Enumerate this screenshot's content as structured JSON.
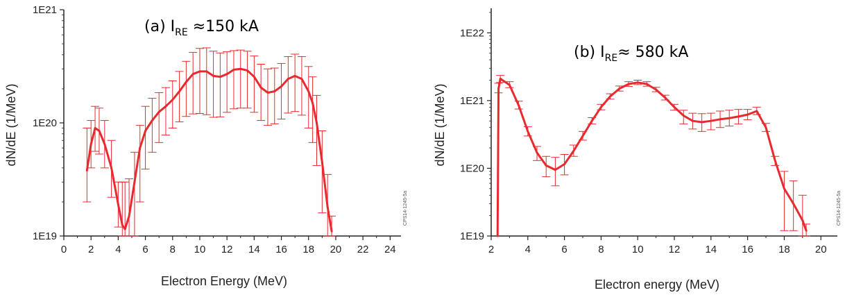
{
  "chart_data": [
    {
      "type": "line",
      "panel_label": {
        "prefix": "(a) I",
        "subscript": "RE",
        "suffix": " ≈150 kA"
      },
      "xlabel": "Electron Energy (MeV)",
      "ylabel": "dN/dE (1/MeV)",
      "xlim": [
        0,
        24.8
      ],
      "ylim": [
        1e+19,
        1e+21
      ],
      "yscale": "log",
      "x_ticks": [
        0,
        2,
        4,
        6,
        8,
        10,
        12,
        14,
        16,
        18,
        20,
        22,
        24
      ],
      "x_tick_labels": [
        "0",
        "2",
        "4",
        "6",
        "8",
        "10",
        "12",
        "14",
        "16",
        "18",
        "20",
        "22",
        "24"
      ],
      "y_ticks": [
        1e+19,
        1e+20,
        1e+21
      ],
      "y_tick_labels": [
        "1E19",
        "1E20",
        "1E21"
      ],
      "side_code": "CPS14-1245-5a",
      "color": "#e8292e",
      "series": [
        {
          "x": [
            1.7,
            2.0,
            2.3,
            2.6,
            3.0,
            3.5,
            4.0,
            4.3,
            4.5,
            4.8,
            5.2,
            5.6,
            6.0,
            6.5,
            7.0,
            7.5,
            8.0,
            8.5,
            9.0,
            9.5,
            10.0,
            10.5,
            11.0,
            11.5,
            12.0,
            12.5,
            13.0,
            13.5,
            14.0,
            14.5,
            15.0,
            15.5,
            16.0,
            16.5,
            17.0,
            17.5,
            18.0,
            18.3,
            18.6,
            19.0,
            19.4,
            19.7
          ],
          "y": [
            3.8e+19,
            6.5e+19,
            9e+19,
            8.5e+19,
            6.5e+19,
            4e+19,
            1.9e+19,
            1.25e+19,
            1.15e+19,
            1.5e+19,
            3e+19,
            6e+19,
            8.5e+19,
            1.05e+20,
            1.25e+20,
            1.4e+20,
            1.6e+20,
            1.9e+20,
            2.3e+20,
            2.7e+20,
            2.85e+20,
            2.85e+20,
            2.6e+20,
            2.55e+20,
            2.7e+20,
            2.95e+20,
            3e+20,
            2.9e+20,
            2.55e+20,
            2.05e+20,
            1.85e+20,
            1.9e+20,
            2.1e+20,
            2.45e+20,
            2.6e+20,
            2.45e+20,
            1.9e+20,
            1.5e+20,
            1e+20,
            4.5e+19,
            1.8e+19,
            1.1e+19
          ],
          "err_low": [
            2e+19,
            4e+19,
            5.6e+19,
            5.3e+19,
            4e+19,
            2.2e+19,
            1.2e+19,
            1e+19,
            1e+19,
            1e+19,
            1e+19,
            2e+19,
            3.9e+19,
            5.5e+19,
            6.7e+19,
            7.8e+19,
            9e+19,
            1.02e+20,
            1.14e+20,
            1.2e+20,
            1.21e+20,
            1.18e+20,
            1.12e+20,
            1.13e+20,
            1.24e+20,
            1.33e+20,
            1.35e+20,
            1.35e+20,
            1.24e+20,
            1.05e+20,
            9.5e+19,
            9.8e+19,
            1.08e+20,
            1.22e+20,
            1.26e+20,
            1.17e+20,
            9e+19,
            6.7e+19,
            4.2e+19,
            1.6e+19,
            1e+19,
            1e+19
          ],
          "err_high": [
            9e+19,
            1.05e+20,
            1.4e+20,
            1.35e+20,
            1.05e+20,
            7e+19,
            3e+19,
            3e+19,
            3e+19,
            3.2e+19,
            5.5e+19,
            9.5e+19,
            1.4e+20,
            1.65e+20,
            1.85e+20,
            2.05e+20,
            2.35e+20,
            2.85e+20,
            3.5e+20,
            4.2e+20,
            4.55e+20,
            4.6e+20,
            4.3e+20,
            4.15e+20,
            4.25e+20,
            4.35e+20,
            4.4e+20,
            4.3e+20,
            3.9e+20,
            3.3e+20,
            3e+20,
            3.05e+20,
            3.35e+20,
            3.85e+20,
            4.05e+20,
            3.85e+20,
            3.15e+20,
            2.55e+20,
            1.75e+20,
            8.5e+19,
            3.5e+19,
            1.5e+19
          ]
        }
      ]
    },
    {
      "type": "line",
      "panel_label": {
        "prefix": "(b) I",
        "subscript": "RE",
        "suffix": "≈ 580 kA"
      },
      "xlabel": "Electron energy (MeV)",
      "ylabel": "dN/dE (1/MeV)",
      "xlim": [
        2,
        20.9
      ],
      "ylim": [
        1e+19,
        2.3e+22
      ],
      "yscale": "log",
      "x_ticks": [
        2,
        4,
        6,
        8,
        10,
        12,
        14,
        16,
        18,
        20
      ],
      "x_tick_labels": [
        "2",
        "4",
        "6",
        "8",
        "10",
        "12",
        "14",
        "16",
        "18",
        "20"
      ],
      "y_ticks": [
        1e+19,
        1e+20,
        1e+21,
        1e+22
      ],
      "y_tick_labels": [
        "1E19",
        "1E20",
        "1E21",
        "1E22"
      ],
      "side_code": "CPS14-1245-5a",
      "color": "#e8292e",
      "series": [
        {
          "x": [
            2.35,
            2.4,
            2.5,
            3.0,
            3.5,
            4.0,
            4.5,
            5.0,
            5.5,
            6.0,
            6.5,
            7.0,
            7.5,
            8.0,
            8.5,
            9.0,
            9.5,
            10.0,
            10.5,
            11.0,
            11.5,
            12.0,
            12.5,
            13.0,
            13.5,
            14.0,
            14.5,
            15.0,
            15.5,
            16.0,
            16.5,
            17.0,
            17.5,
            18.0,
            18.5,
            19.0,
            19.2
          ],
          "y": [
            1e+19,
            1.5e+21,
            2.1e+21,
            1.7e+21,
            8.5e+20,
            3.5e+20,
            1.7e+20,
            1.1e+20,
            9.5e+19,
            1.15e+20,
            1.8e+20,
            3e+20,
            5e+20,
            8e+20,
            1.15e+21,
            1.5e+21,
            1.75e+21,
            1.85e+21,
            1.75e+21,
            1.45e+21,
            1.1e+21,
            8e+20,
            6e+20,
            5e+20,
            4.8e+20,
            5e+20,
            5.3e+20,
            5.5e+20,
            5.8e+20,
            6.2e+20,
            7e+20,
            4e+20,
            1.3e+20,
            5e+19,
            3e+19,
            1.7e+19,
            1.2e+19
          ],
          "err_low": [
            1e+19,
            1.3e+21,
            1.85e+21,
            1.55e+21,
            7.5e+20,
            3e+20,
            1.3e+20,
            7.5e+19,
            5.5e+19,
            8e+19,
            1.5e+20,
            2.6e+20,
            4.5e+20,
            7.3e+20,
            1.05e+21,
            1.38e+21,
            1.62e+21,
            1.72e+21,
            1.63e+21,
            1.35e+21,
            1.02e+21,
            7.2e+20,
            4.5e+20,
            3.8e+20,
            3.5e+20,
            3.7e+20,
            4e+20,
            4.2e+20,
            4.5e+20,
            5.2e+20,
            6.2e+20,
            3.5e+20,
            1.1e+20,
            1.2e+19,
            1.2e+19,
            1e+19,
            1e+19
          ],
          "err_high": [
            1e+19,
            1.8e+21,
            2.35e+21,
            1.9e+21,
            9.8e+20,
            4.1e+20,
            2.1e+20,
            1.5e+20,
            1.45e+20,
            1.6e+20,
            2.2e+20,
            3.5e+20,
            5.6e+20,
            8.8e+20,
            1.26e+21,
            1.64e+21,
            1.9e+21,
            2e+21,
            1.9e+21,
            1.57e+21,
            1.2e+21,
            8.8e+20,
            7.2e+20,
            6.5e+20,
            6.4e+20,
            6.5e+20,
            7e+20,
            7.2e+20,
            7.4e+20,
            7.4e+20,
            8e+20,
            4.6e+20,
            1.5e+20,
            9e+19,
            6.5e+19,
            4e+19,
            1.5e+19
          ]
        }
      ]
    }
  ]
}
